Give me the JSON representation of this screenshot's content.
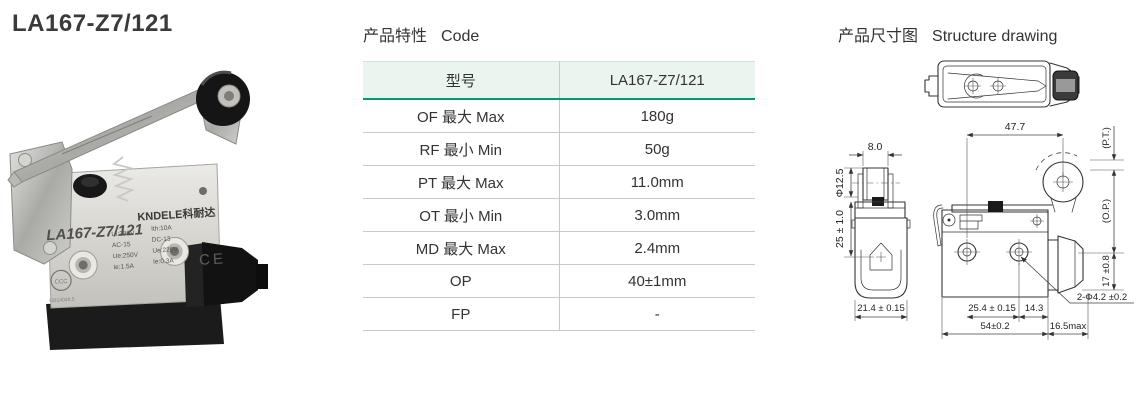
{
  "page": {
    "title": "LA167-Z7/121"
  },
  "photo": {
    "label_model": "LA167-Z7/121",
    "brand": "KNDELE科耐达",
    "ccc_mark": "CCC",
    "ce_mark": "CE",
    "standard_code": "GB14048.5",
    "ratings_left": [
      "Ui:380V",
      "AC-15",
      "Ue:250V",
      "Ie:1.5A"
    ],
    "ratings_right": [
      "Ith:10A",
      "DC-13",
      "Ue:220V",
      "Ie:0.3A"
    ]
  },
  "features": {
    "heading_zh": "产品特性",
    "heading_en": "Code",
    "table": {
      "header": [
        "型号",
        "LA167-Z7/121"
      ],
      "rows": [
        [
          "OF 最大 Max",
          "180g"
        ],
        [
          "RF 最小 Min",
          "50g"
        ],
        [
          "PT 最大 Max",
          "11.0mm"
        ],
        [
          "OT 最小 Min",
          "3.0mm"
        ],
        [
          "MD 最大 Max",
          "2.4mm"
        ],
        [
          "OP",
          "40±1mm"
        ],
        [
          "FP",
          "-"
        ]
      ]
    }
  },
  "drawing": {
    "heading_zh": "产品尺寸图",
    "heading_en": "Structure drawing",
    "dims": {
      "lever_length": "47.7",
      "roller_width": "8.0",
      "roller_dia": "Φ12.5",
      "lever_height": "25 ± 1.0",
      "front_width": "21.4 ± 0.15",
      "pt": "(P.T.)",
      "op": "(O.P.)",
      "side_height": "17 ±0.8",
      "hole_pitch": "25.4 ± 0.15",
      "hole_offset": "14.3",
      "mount_holes": "2-Φ4.2 ±0.2",
      "base_width": "54±0.2",
      "gland_length": "16.5max"
    }
  },
  "colors": {
    "accent_green": "#009B72",
    "table_header_bg": "#E9F5EE",
    "table_line": "#C9C9C9",
    "text": "#333333"
  }
}
